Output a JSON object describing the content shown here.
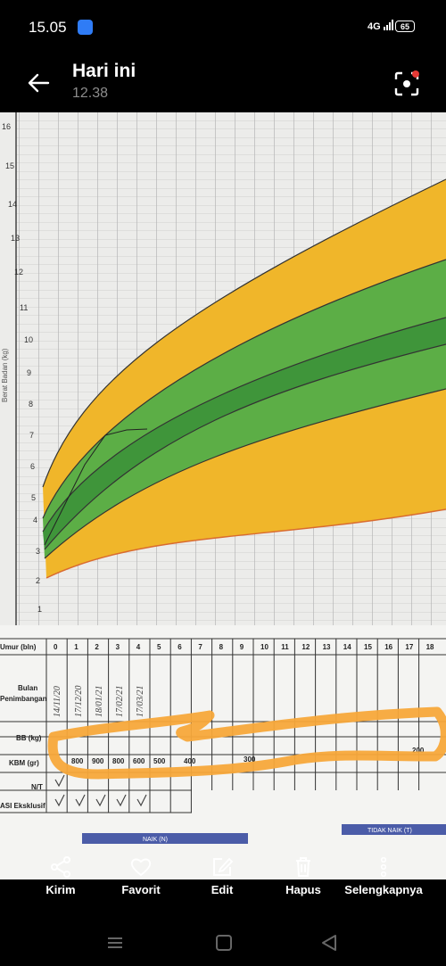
{
  "status": {
    "time": "15.05",
    "network": "4G",
    "battery": "65"
  },
  "header": {
    "title": "Hari ini",
    "subtitle": "12.38"
  },
  "chart": {
    "y_label": "Berat Badan (kg)",
    "y_ticks": [
      "16",
      "15",
      "14",
      "13",
      "12",
      "11",
      "10",
      "9",
      "8",
      "7",
      "6",
      "5",
      "4",
      "3",
      "2",
      "1"
    ],
    "rows": {
      "umur": "Umur (bln)",
      "bulan": "Bulan",
      "penimbangan": "Penimbangan",
      "bb": "BB (kg)",
      "kbm": "KBM (gr)",
      "nt": "N/T",
      "asi": "ASI Eksklusif"
    },
    "months": [
      "0",
      "1",
      "2",
      "3",
      "4",
      "5",
      "6",
      "7",
      "8",
      "9",
      "10",
      "11",
      "12",
      "13",
      "14",
      "15",
      "16",
      "17",
      "18"
    ],
    "dates": [
      "14/11/20",
      "17/12/20",
      "18/01/21",
      "17/02/21",
      "17/03/21"
    ],
    "kbm_values": [
      "800",
      "900",
      "800",
      "600",
      "500",
      "400",
      "300",
      "200"
    ],
    "footer_left": "NAIK (N)",
    "footer_right": "TIDAK NAIK (T)"
  },
  "toolbar": {
    "share": "Kirim",
    "favorite": "Favorit",
    "edit": "Edit",
    "delete": "Hapus",
    "more": "Selengkapnya"
  }
}
